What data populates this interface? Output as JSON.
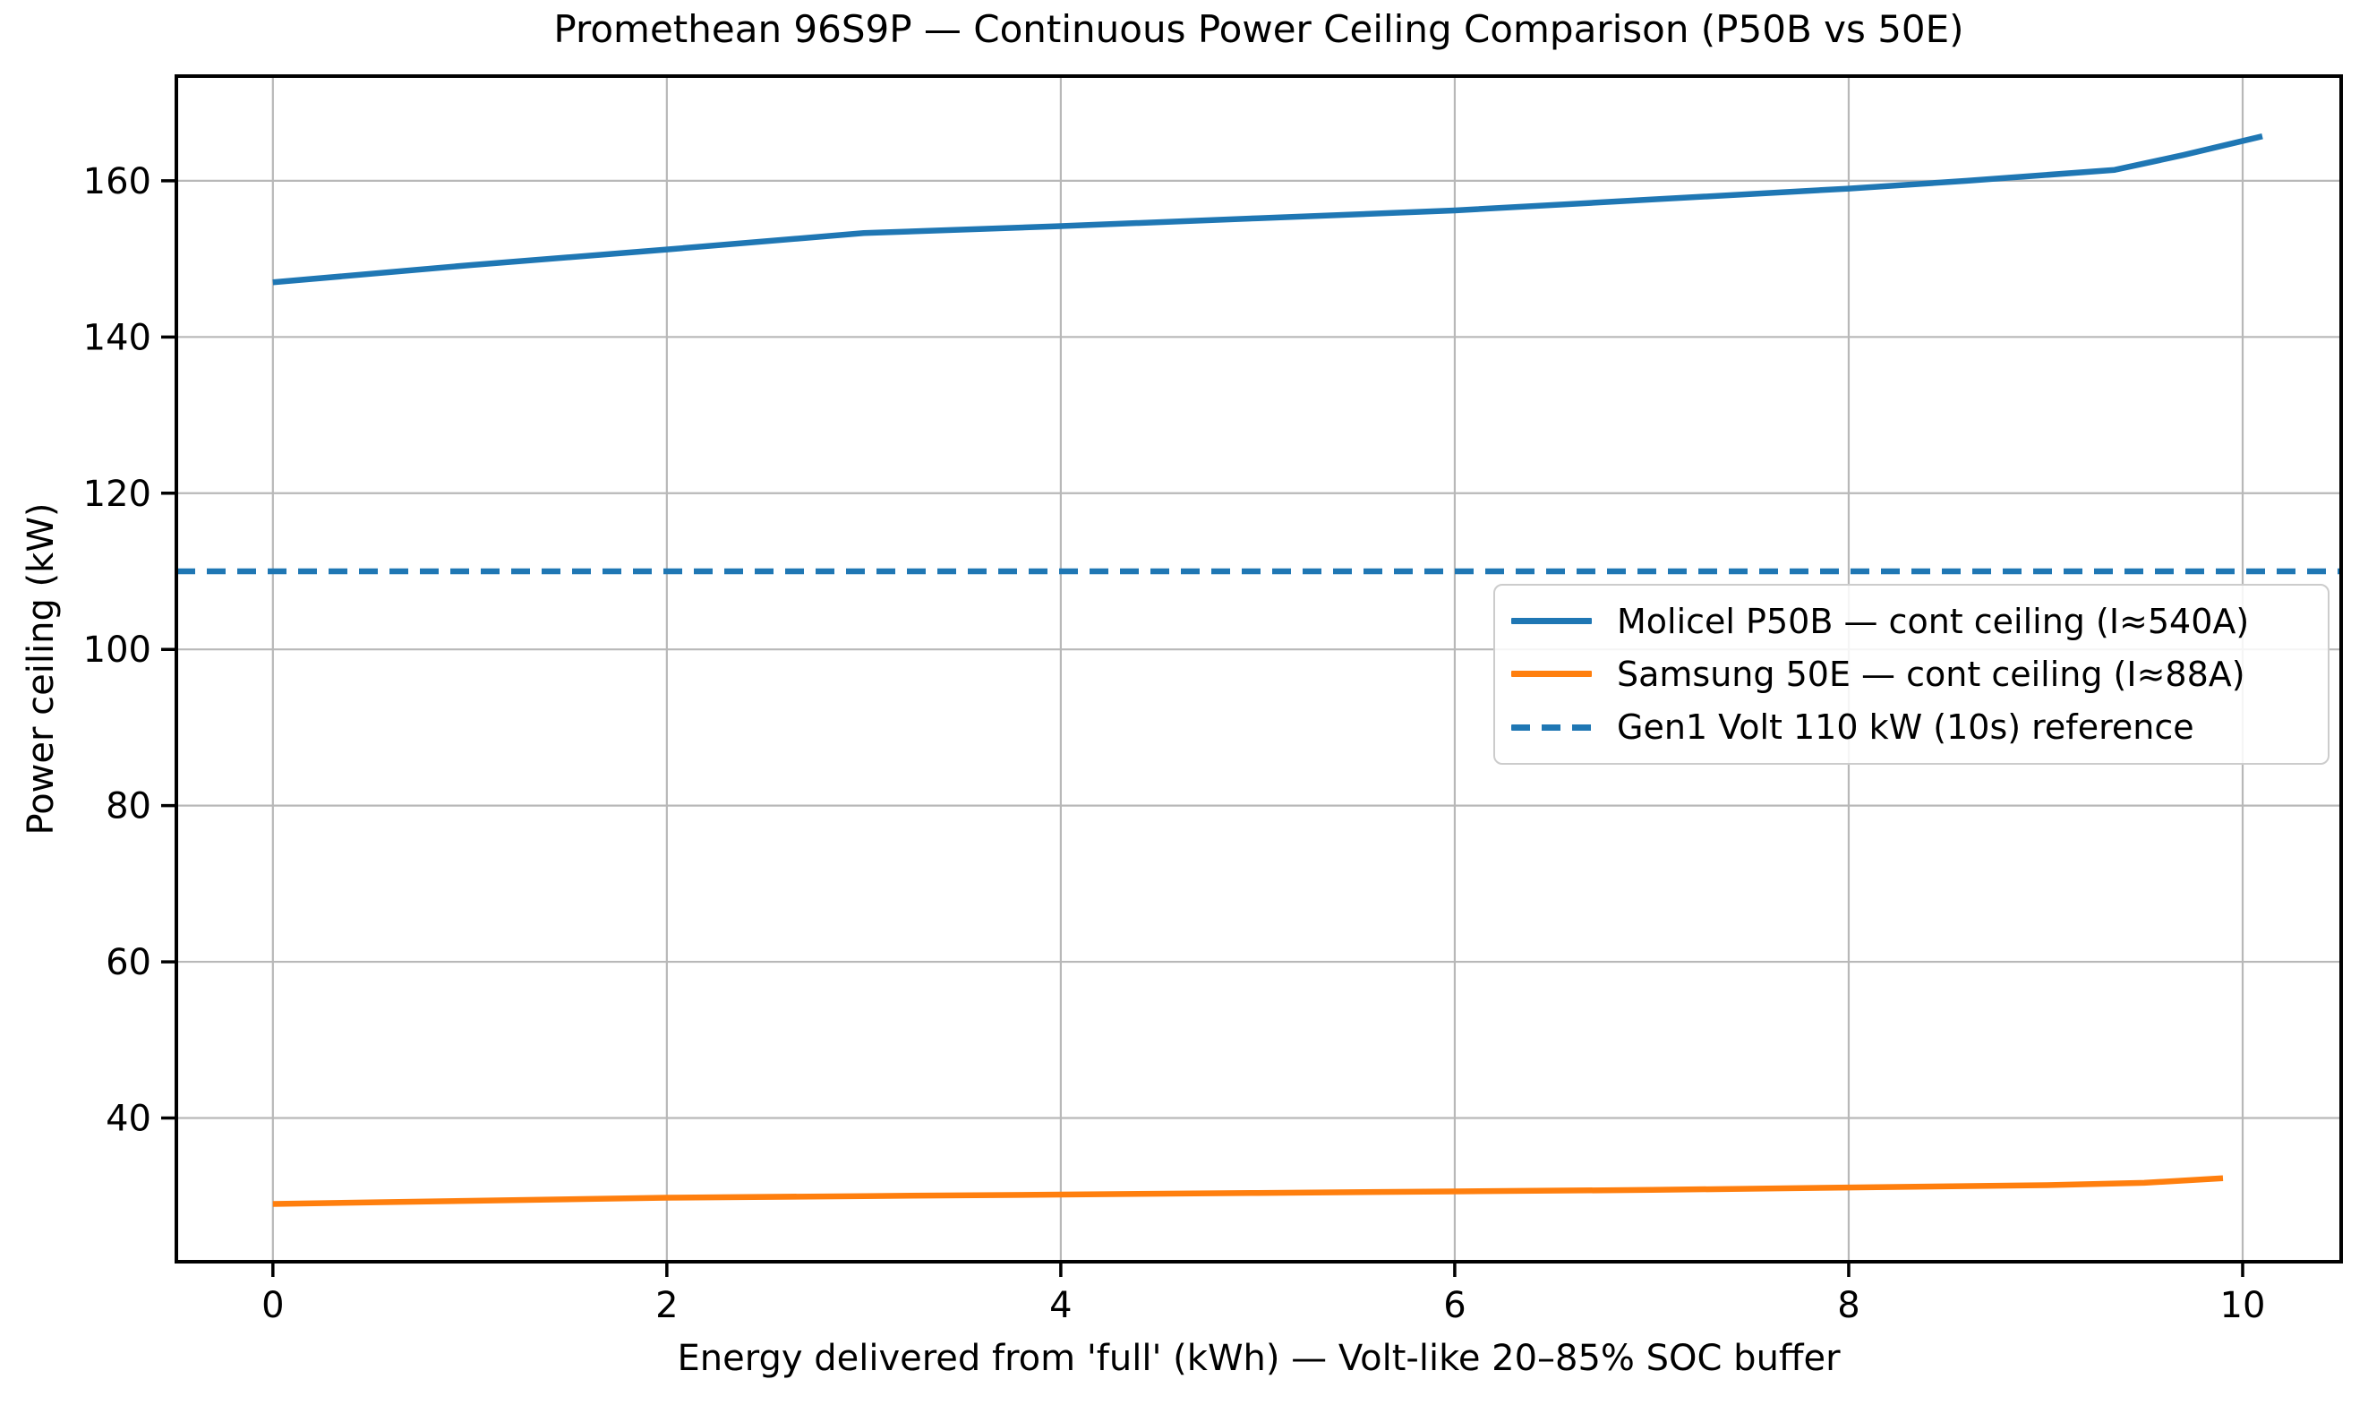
{
  "figure": {
    "background": "#ffffff",
    "text_color": "#000000"
  },
  "chart_data": {
    "type": "line",
    "title": "Promethean 96S9P — Continuous Power Ceiling Comparison (P50B vs 50E)",
    "xlabel": "Energy delivered from 'full' (kWh) — Volt-like 20–85% SOC buffer",
    "ylabel": "Power ceiling (kW)",
    "xlim": [
      -0.49,
      10.5
    ],
    "ylim": [
      21.6,
      173.4
    ],
    "xticks": [
      0,
      2,
      4,
      6,
      8,
      10
    ],
    "yticks": [
      40,
      60,
      80,
      100,
      120,
      140,
      160
    ],
    "grid": true,
    "grid_color": "#b8b8b8",
    "spine_color": "#000000",
    "legend_position": "center right",
    "series": [
      {
        "name": "Molicel P50B — cont ceiling (I≈540A)",
        "color": "#1f77b4",
        "style": "solid",
        "x": [
          0,
          1,
          2,
          3,
          4,
          5,
          6,
          7,
          8,
          8.6,
          9.35,
          9.7,
          10.1
        ],
        "y": [
          147.0,
          149.2,
          151.2,
          153.3,
          154.2,
          155.2,
          156.2,
          157.6,
          159.0,
          160.0,
          161.4,
          163.3,
          165.7
        ]
      },
      {
        "name": "Samsung 50E — cont ceiling (I≈88A)",
        "color": "#ff7f0e",
        "style": "solid",
        "x": [
          0,
          1,
          2,
          3,
          4,
          5,
          6,
          7,
          8,
          9,
          9.5,
          9.9
        ],
        "y": [
          29.0,
          29.4,
          29.8,
          30.0,
          30.2,
          30.4,
          30.6,
          30.8,
          31.1,
          31.4,
          31.7,
          32.3
        ]
      },
      {
        "name": "Gen1 Volt 110 kW (10s) reference",
        "color": "#1f77b4",
        "style": "dashed",
        "x": [
          -0.49,
          10.5
        ],
        "y": [
          110,
          110
        ]
      }
    ]
  }
}
